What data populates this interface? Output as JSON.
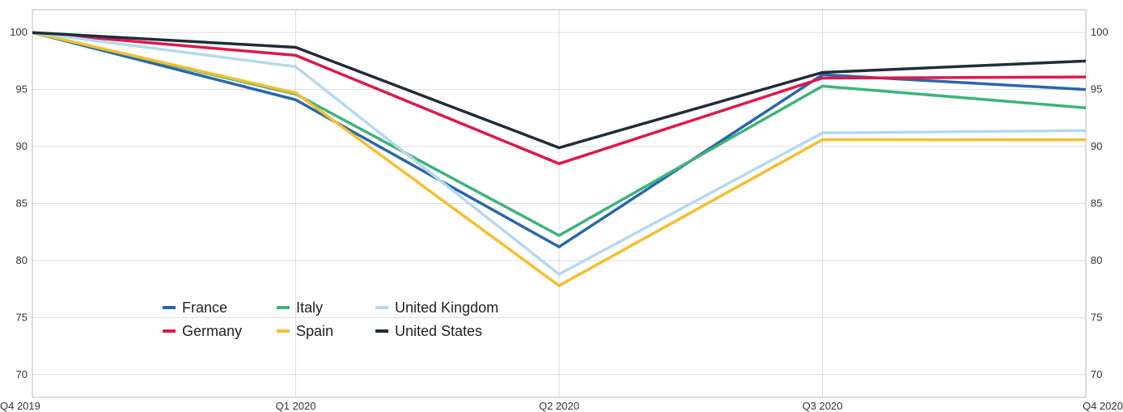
{
  "chart_data": {
    "type": "line",
    "title": "",
    "xlabel": "",
    "ylabel": "",
    "categories": [
      "Q4 2019",
      "Q1 2020",
      "Q2 2020",
      "Q3 2020",
      "Q4 2020"
    ],
    "ylim": [
      68,
      102
    ],
    "yticks": [
      70,
      75,
      80,
      85,
      90,
      95,
      100
    ],
    "grid": true,
    "y_axis_labels": "both-sides",
    "legend_position": "lower-left",
    "series": [
      {
        "name": "France",
        "color": "#2a66ad",
        "values": [
          100,
          94.1,
          81.2,
          96.3,
          95.0
        ]
      },
      {
        "name": "Germany",
        "color": "#e0174a",
        "values": [
          100,
          98.0,
          88.5,
          96.0,
          96.1
        ]
      },
      {
        "name": "Italy",
        "color": "#3db37a",
        "values": [
          100,
          94.6,
          82.2,
          95.3,
          93.4
        ]
      },
      {
        "name": "Spain",
        "color": "#f6be2c",
        "values": [
          100,
          94.7,
          77.8,
          90.6,
          90.6
        ]
      },
      {
        "name": "United Kingdom",
        "color": "#b4d9ef",
        "values": [
          100,
          97.0,
          78.8,
          91.2,
          91.4
        ]
      },
      {
        "name": "United States",
        "color": "#1f2d38",
        "values": [
          100,
          98.7,
          89.9,
          96.5,
          97.5
        ]
      }
    ]
  }
}
